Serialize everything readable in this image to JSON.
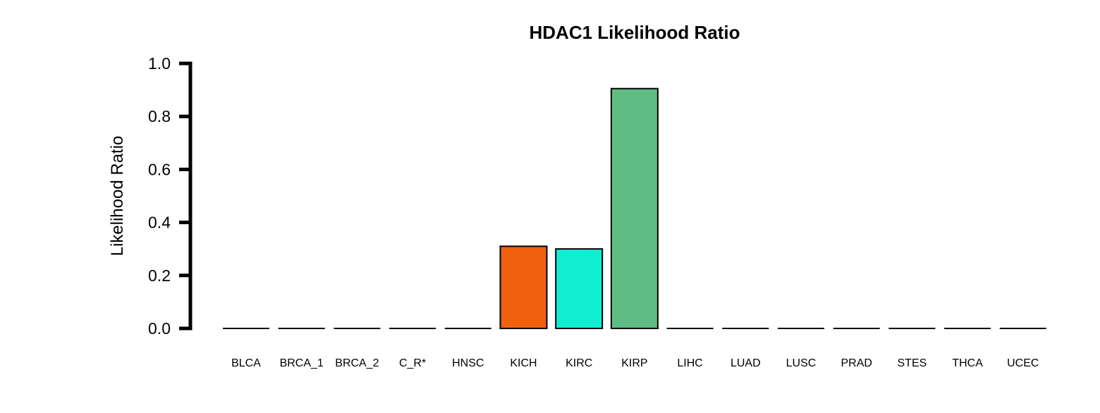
{
  "chart_data": {
    "type": "bar",
    "title": "HDAC1 Likelihood Ratio",
    "xlabel": "",
    "ylabel": "Likelihood Ratio",
    "ylim": [
      0,
      1.0
    ],
    "yticks": [
      "0.0",
      "0.2",
      "0.4",
      "0.6",
      "0.8",
      "1.0"
    ],
    "grid": false,
    "categories": [
      "BLCA",
      "BRCA_1",
      "BRCA_2",
      "C_R*",
      "HNSC",
      "KICH",
      "KIRC",
      "KIRP",
      "LIHC",
      "LUAD",
      "LUSC",
      "PRAD",
      "STES",
      "THCA",
      "UCEC"
    ],
    "values": [
      0,
      0,
      0,
      0,
      0,
      0.31,
      0.3,
      0.905,
      0,
      0,
      0,
      0,
      0,
      0,
      0
    ],
    "colors": [
      "#000000",
      "#000000",
      "#000000",
      "#000000",
      "#000000",
      "#F0600F",
      "#10EED2",
      "#5FBC82",
      "#000000",
      "#000000",
      "#000000",
      "#000000",
      "#000000",
      "#000000",
      "#000000"
    ]
  }
}
